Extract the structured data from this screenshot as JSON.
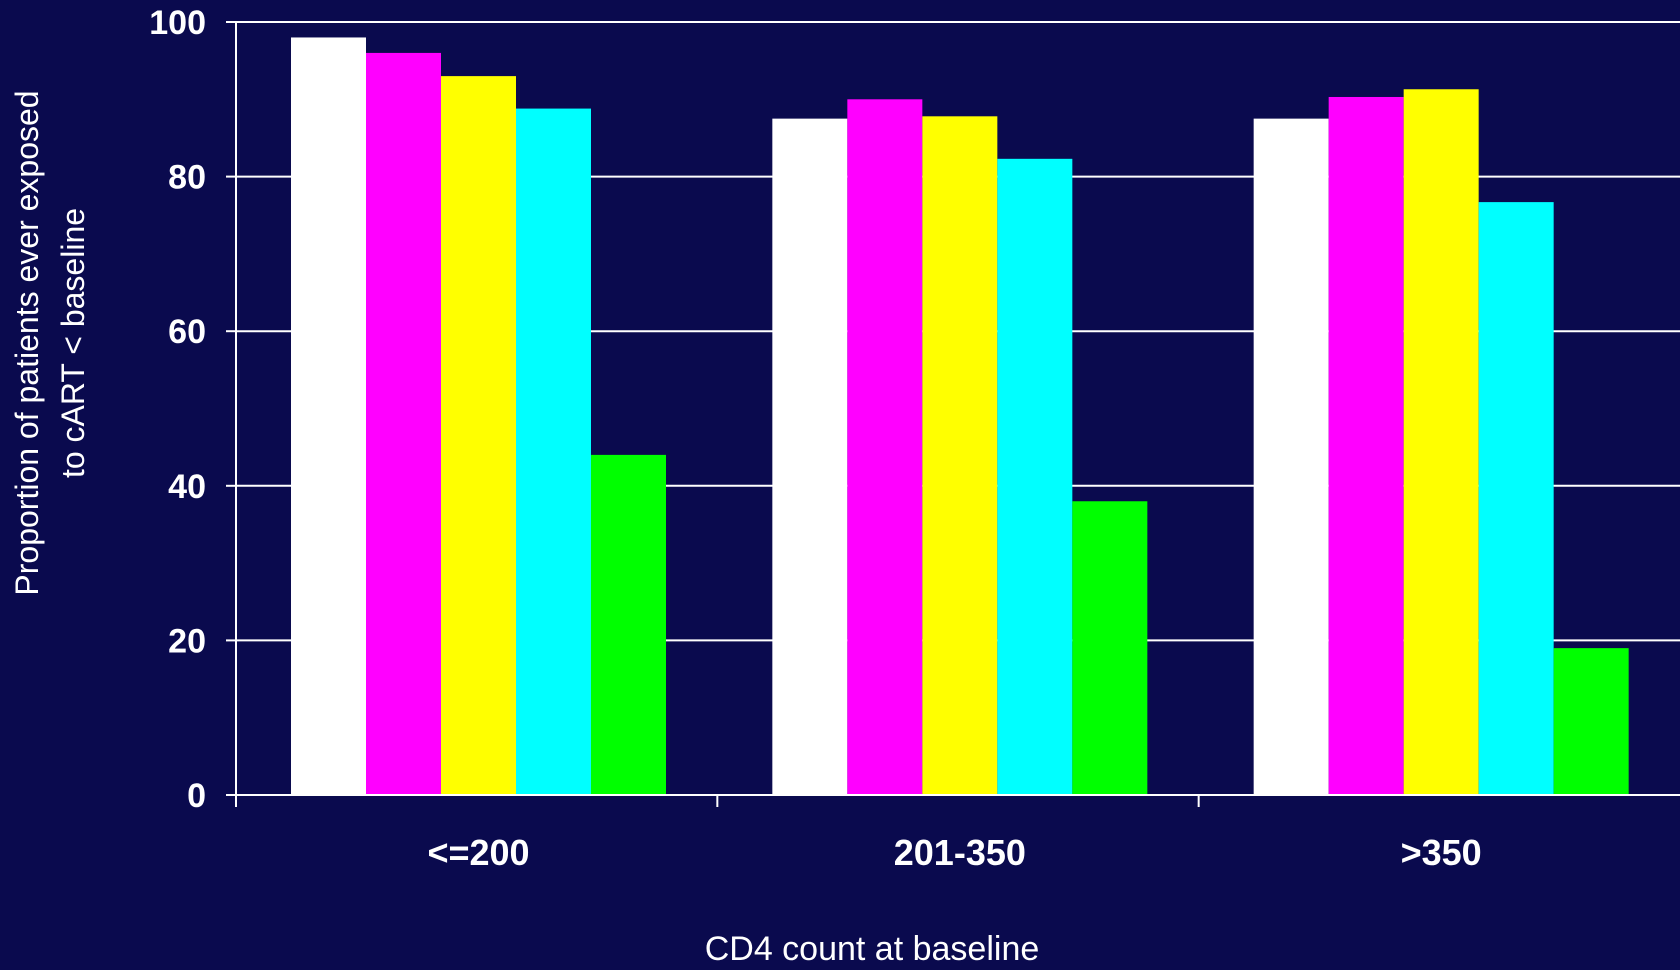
{
  "chart_data": {
    "type": "bar",
    "title": "",
    "xlabel": "CD4 count at baseline",
    "ylabel_line1": "Proportion of patients ever exposed",
    "ylabel_line2": "to cART < baseline",
    "ylim": [
      0,
      100
    ],
    "yticks": [
      "0",
      "20",
      "40",
      "60",
      "80",
      "100"
    ],
    "grid": true,
    "legend": "none",
    "categories": [
      "<=200",
      "201-350",
      ">350"
    ],
    "series": [
      {
        "color": "#ffffff",
        "values": [
          98,
          87.5,
          87.5
        ]
      },
      {
        "color": "#ff00ff",
        "values": [
          96,
          90,
          90.3
        ]
      },
      {
        "color": "#ffff00",
        "values": [
          93,
          87.8,
          91.3
        ]
      },
      {
        "color": "#00ffff",
        "values": [
          88.8,
          82.3,
          76.7
        ]
      },
      {
        "color": "#00ff00",
        "values": [
          44,
          38,
          19
        ]
      }
    ]
  },
  "colors": {
    "background": "#0a0a4e",
    "axis": "#ffffff",
    "gridline": "#ffffff",
    "text": "#ffffff"
  }
}
